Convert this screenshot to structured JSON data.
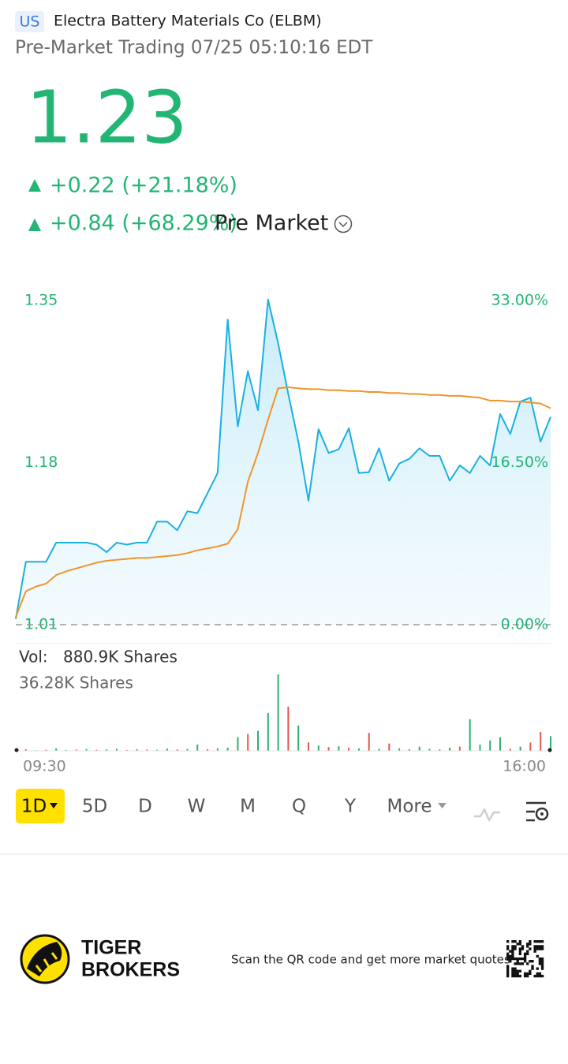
{
  "header": {
    "market": "US",
    "name": "Electra Battery Materials Co (ELBM)",
    "status": "Pre-Market Trading 07/25 05:10:16 EDT"
  },
  "quote": {
    "price": "1.23",
    "change": "+0.22 (+21.18%)",
    "pre_change": "+0.84 (+68.29%)",
    "pre_label": "Pre Market"
  },
  "chart_data": {
    "type": "line",
    "x_labels": [
      "09:30",
      "16:00"
    ],
    "ylim": [
      1.01,
      1.35
    ],
    "yticks": [
      1.01,
      1.18,
      1.35
    ],
    "y2lim": [
      0,
      33
    ],
    "y2ticks": [
      {
        "value": 0,
        "label": "0.00%"
      },
      {
        "value": 16.5,
        "label": "16.50%"
      },
      {
        "value": 33,
        "label": "33.00%"
      }
    ],
    "series": [
      {
        "name": "Price",
        "color": "#1ab0e0",
        "values": [
          1.016,
          1.076,
          1.076,
          1.076,
          1.096,
          1.096,
          1.096,
          1.096,
          1.094,
          1.086,
          1.096,
          1.094,
          1.096,
          1.096,
          1.118,
          1.118,
          1.109,
          1.129,
          1.127,
          1.148,
          1.169,
          1.33,
          1.218,
          1.276,
          1.235,
          1.351,
          1.305,
          1.252,
          1.202,
          1.14,
          1.215,
          1.19,
          1.194,
          1.216,
          1.169,
          1.17,
          1.195,
          1.161,
          1.179,
          1.184,
          1.195,
          1.187,
          1.187,
          1.161,
          1.177,
          1.169,
          1.187,
          1.177,
          1.231,
          1.21,
          1.244,
          1.248,
          1.202,
          1.228
        ]
      },
      {
        "name": "Average",
        "color": "#f0952a",
        "values": [
          1.018,
          1.045,
          1.05,
          1.053,
          1.062,
          1.066,
          1.069,
          1.072,
          1.075,
          1.077,
          1.078,
          1.079,
          1.08,
          1.08,
          1.081,
          1.082,
          1.083,
          1.085,
          1.088,
          1.09,
          1.092,
          1.095,
          1.11,
          1.16,
          1.19,
          1.225,
          1.258,
          1.259,
          1.258,
          1.257,
          1.257,
          1.256,
          1.256,
          1.255,
          1.255,
          1.254,
          1.254,
          1.253,
          1.253,
          1.252,
          1.252,
          1.251,
          1.251,
          1.25,
          1.25,
          1.249,
          1.248,
          1.245,
          1.245,
          1.244,
          1.244,
          1.243,
          1.242,
          1.237
        ]
      }
    ],
    "volume": {
      "label": "Vol:",
      "total": "880.9K Shares",
      "max_label": "36.28K Shares",
      "ylim": [
        0,
        36.28
      ],
      "values": [
        0.5,
        0.8,
        0.3,
        0.5,
        1.2,
        0.4,
        0.6,
        0.9,
        0.5,
        0.7,
        1.0,
        0.4,
        0.8,
        0.6,
        0.5,
        1.1,
        0.7,
        0.9,
        3.0,
        0.8,
        1.2,
        1.5,
        6.5,
        8.0,
        9.5,
        18.0,
        36.28,
        21.0,
        12.0,
        4.0,
        2.5,
        1.8,
        2.2,
        1.5,
        1.2,
        8.5,
        1.0,
        3.5,
        1.2,
        0.8,
        2.0,
        1.0,
        0.7,
        1.5,
        2.0,
        15.0,
        3.0,
        5.0,
        6.5,
        1.0,
        2.0,
        4.0,
        9.0,
        7.0
      ],
      "colors": [
        "#2ab06f",
        "#e0574f",
        "#2ab06f",
        "#e0574f",
        "#2ab06f",
        "#2ab06f",
        "#e0574f",
        "#2ab06f",
        "#e0574f",
        "#2ab06f",
        "#2ab06f",
        "#e0574f",
        "#2ab06f",
        "#e0574f",
        "#2ab06f",
        "#2ab06f",
        "#e0574f",
        "#2ab06f",
        "#2ab06f",
        "#e0574f",
        "#2ab06f",
        "#2ab06f",
        "#2ab06f",
        "#e0574f",
        "#2ab06f",
        "#2ab06f",
        "#2ab06f",
        "#e0574f",
        "#2ab06f",
        "#e0574f",
        "#2ab06f",
        "#e0574f",
        "#2ab06f",
        "#e0574f",
        "#2ab06f",
        "#e0574f",
        "#2ab06f",
        "#e0574f",
        "#2ab06f",
        "#e0574f",
        "#2ab06f",
        "#2ab06f",
        "#e0574f",
        "#2ab06f",
        "#e0574f",
        "#2ab06f",
        "#2ab06f",
        "#2ab06f",
        "#2ab06f",
        "#e0574f",
        "#2ab06f",
        "#e0574f",
        "#e0574f",
        "#2ab06f"
      ]
    }
  },
  "periods": [
    "1D",
    "5D",
    "D",
    "W",
    "M",
    "Q",
    "Y",
    "More"
  ],
  "footer": {
    "brand_top": "TIGER",
    "brand_bottom": "BROKERS",
    "qr_text": "Scan the QR code and get more market quotes"
  }
}
